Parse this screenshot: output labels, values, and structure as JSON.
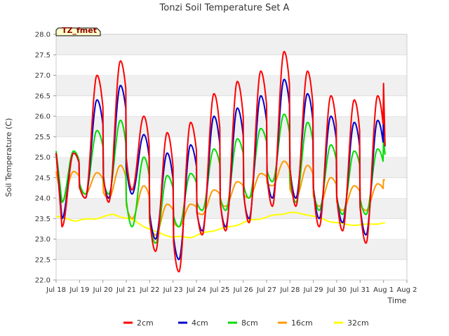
{
  "chart_data": {
    "type": "line",
    "title": "Tonzi Soil Temperature Set A",
    "xlabel": "Time",
    "ylabel": "Soil Temperature (C)",
    "badge": "TZ_fmet",
    "ylim": [
      22.0,
      28.0
    ],
    "xlim": [
      "2012-07-18",
      "2012-08-02"
    ],
    "x_ticks": [
      "Jul 18",
      "Jul 19",
      "Jul 20",
      "Jul 21",
      "Jul 22",
      "Jul 23",
      "Jul 24",
      "Jul 25",
      "Jul 26",
      "Jul 27",
      "Jul 28",
      "Jul 29",
      "Jul 30",
      "Jul 31",
      "Aug 1",
      "Aug 2"
    ],
    "y_ticks": [
      "22.0",
      "22.5",
      "23.0",
      "23.5",
      "24.0",
      "24.5",
      "25.0",
      "25.5",
      "26.0",
      "26.5",
      "27.0",
      "27.5",
      "28.0"
    ],
    "grid": "horizontal bands",
    "legend_position": "bottom",
    "series": [
      {
        "name": "2cm",
        "color": "#ff0000",
        "daily_min": [
          23.3,
          24.0,
          23.9,
          24.2,
          22.7,
          22.2,
          23.1,
          23.2,
          23.4,
          23.8,
          23.8,
          23.3,
          23.2,
          22.9,
          23.3
        ],
        "daily_max": [
          25.1,
          27.0,
          27.35,
          26.0,
          25.6,
          25.85,
          26.55,
          26.85,
          27.1,
          27.58,
          27.1,
          26.5,
          26.4,
          26.5,
          26.8
        ],
        "end": 24.85
      },
      {
        "name": "4cm",
        "color": "#0000cc",
        "daily_min": [
          23.5,
          24.0,
          24.0,
          24.1,
          23.0,
          22.5,
          23.2,
          23.3,
          23.5,
          24.0,
          24.0,
          23.5,
          23.4,
          23.1,
          23.4
        ],
        "daily_max": [
          25.1,
          26.4,
          26.75,
          25.55,
          25.1,
          25.3,
          26.0,
          26.2,
          26.5,
          26.9,
          26.55,
          26.0,
          25.85,
          25.9,
          26.2
        ],
        "end": 25.0
      },
      {
        "name": "8cm",
        "color": "#00dd00",
        "daily_min": [
          23.9,
          24.1,
          24.1,
          23.3,
          22.9,
          23.3,
          23.7,
          23.7,
          24.0,
          24.4,
          23.9,
          23.7,
          23.6,
          23.6,
          23.8
        ],
        "daily_max": [
          25.15,
          25.65,
          25.9,
          25.0,
          24.55,
          24.6,
          25.2,
          25.45,
          25.7,
          26.05,
          25.85,
          25.3,
          25.15,
          25.2,
          25.45
        ],
        "end": 24.95
      },
      {
        "name": "16cm",
        "color": "#ff9900",
        "daily_min": [
          23.9,
          24.1,
          24.0,
          23.5,
          23.1,
          23.3,
          23.6,
          23.8,
          24.0,
          24.3,
          24.0,
          23.8,
          23.7,
          23.7,
          23.8
        ],
        "daily_max": [
          24.65,
          24.62,
          24.8,
          24.3,
          23.85,
          23.85,
          24.2,
          24.4,
          24.6,
          24.9,
          24.8,
          24.5,
          24.3,
          24.35,
          24.45
        ],
        "end": 24.45
      },
      {
        "name": "32cm",
        "color": "#ffff00",
        "values": [
          23.55,
          23.45,
          23.5,
          23.6,
          23.45,
          23.2,
          23.05,
          23.05,
          23.2,
          23.3,
          23.45,
          23.55,
          23.65,
          23.6,
          23.45,
          23.35,
          23.35,
          23.4
        ]
      }
    ]
  }
}
